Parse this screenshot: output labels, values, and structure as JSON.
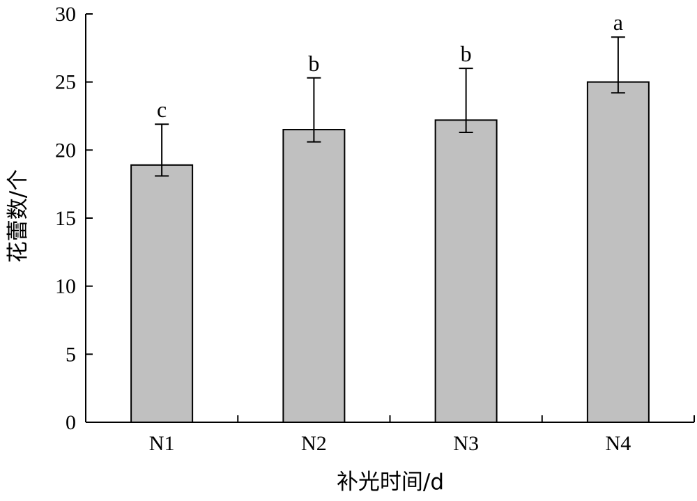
{
  "chart_data": {
    "type": "bar",
    "categories": [
      "N1",
      "N2",
      "N3",
      "N4"
    ],
    "values": [
      18.9,
      21.5,
      22.2,
      25.0
    ],
    "error_upper": [
      21.9,
      25.3,
      26.0,
      28.3
    ],
    "error_lower": [
      18.1,
      20.6,
      21.3,
      24.2
    ],
    "significance_letters": [
      "c",
      "b",
      "b",
      "a"
    ],
    "xlabel": "补光时间/d",
    "ylabel": "花蕾数/个",
    "ylim": [
      0,
      30
    ],
    "yticks": [
      "0",
      "5",
      "10",
      "15",
      "20",
      "25",
      "30"
    ],
    "ytick_values": [
      0,
      5,
      10,
      15,
      20,
      25,
      30
    ],
    "grid": false,
    "legend": "none",
    "bar_color": "#c0c0c0",
    "edge_color": "#000000"
  }
}
